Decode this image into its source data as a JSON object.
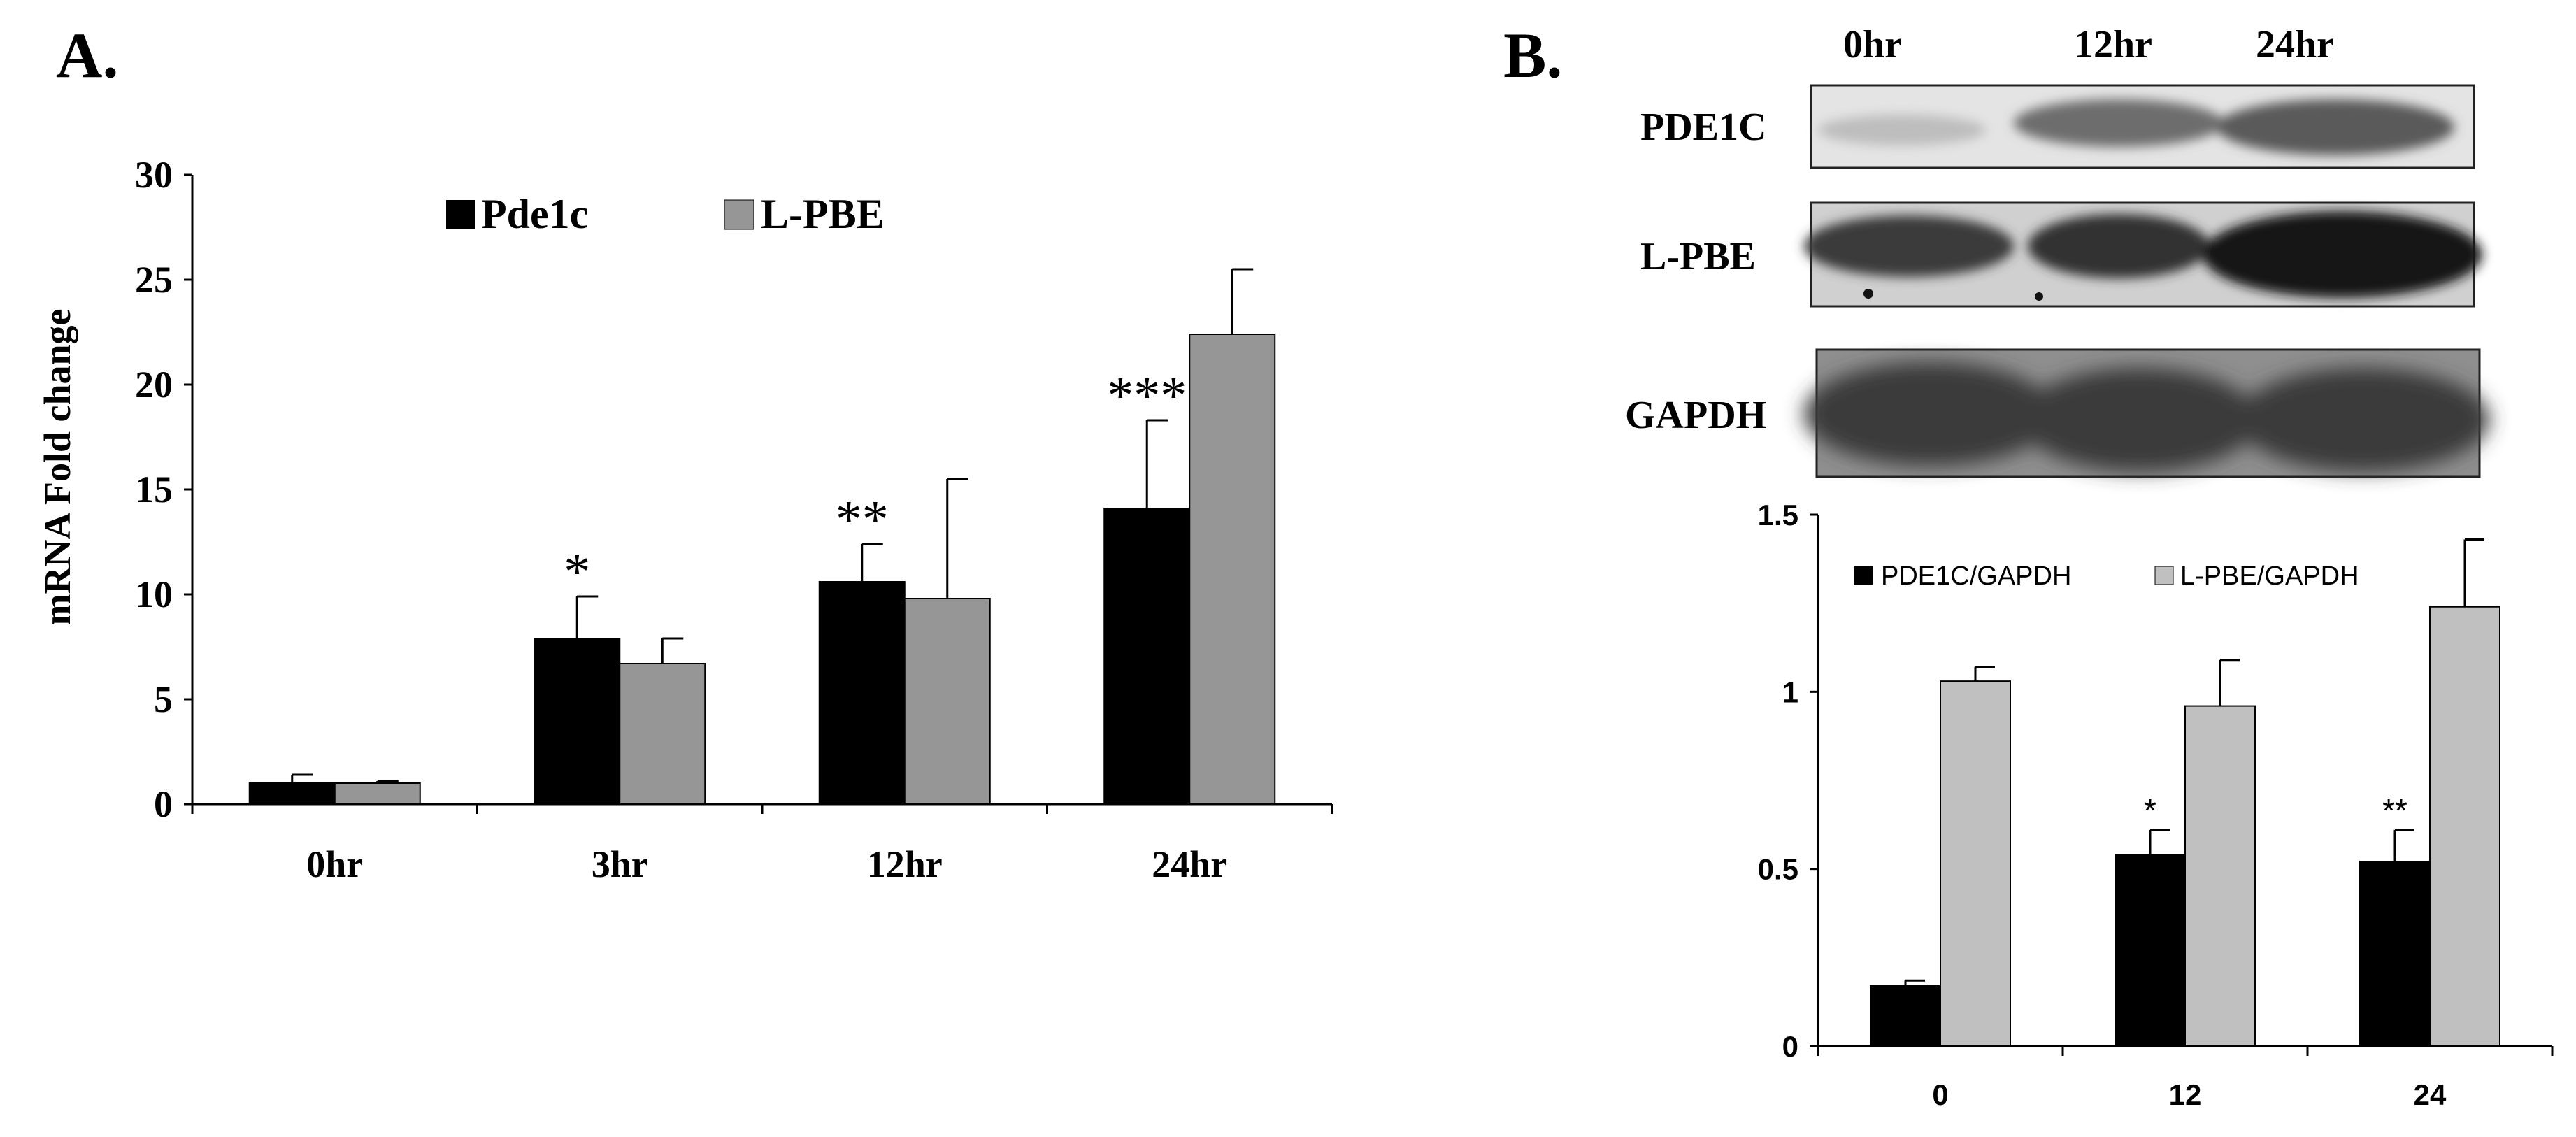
{
  "panel_a_letter": "A.",
  "panel_b_letter": "B.",
  "colors": {
    "dark": "#000000",
    "light_a": "#969696",
    "light_b": "#c0c0c0"
  },
  "blot": {
    "time_labels": [
      "0hr",
      "12hr",
      "24hr"
    ],
    "rows": [
      {
        "label": "PDE1C"
      },
      {
        "label": "L-PBE"
      },
      {
        "label": "GAPDH"
      }
    ]
  },
  "chart_data": [
    {
      "type": "bar",
      "categories": [
        "0hr",
        "3hr",
        "12hr",
        "24hr"
      ],
      "ylabel": "mRNA Fold change",
      "ylim": [
        0,
        30
      ],
      "yticks": [
        "0",
        "5",
        "10",
        "15",
        "20",
        "25",
        "30"
      ],
      "legend_position": "top",
      "series": [
        {
          "name": "Pde1c",
          "values": [
            1.0,
            7.9,
            10.6,
            14.1
          ],
          "errors": [
            0.4,
            2.0,
            1.8,
            4.2
          ],
          "color": "#000000"
        },
        {
          "name": "L-PBE",
          "values": [
            1.0,
            6.7,
            9.8,
            22.4
          ],
          "errors": [
            0.1,
            1.2,
            5.7,
            3.1
          ],
          "color": "#969696"
        }
      ],
      "annotations": [
        "",
        "*",
        "**",
        "***"
      ]
    },
    {
      "type": "bar",
      "categories": [
        "0",
        "12",
        "24"
      ],
      "ylim": [
        0,
        1.5
      ],
      "yticks": [
        "0",
        "0.5",
        "1",
        "1.5"
      ],
      "legend_position": "top",
      "series": [
        {
          "name": "PDE1C/GAPDH",
          "values": [
            0.17,
            0.54,
            0.52
          ],
          "errors": [
            0.015,
            0.07,
            0.09
          ],
          "color": "#000000"
        },
        {
          "name": "L-PBE/GAPDH",
          "values": [
            1.03,
            0.96,
            1.24
          ],
          "errors": [
            0.04,
            0.13,
            0.19
          ],
          "color": "#c0c0c0"
        }
      ],
      "annotations": [
        "",
        "*",
        "**"
      ]
    }
  ]
}
